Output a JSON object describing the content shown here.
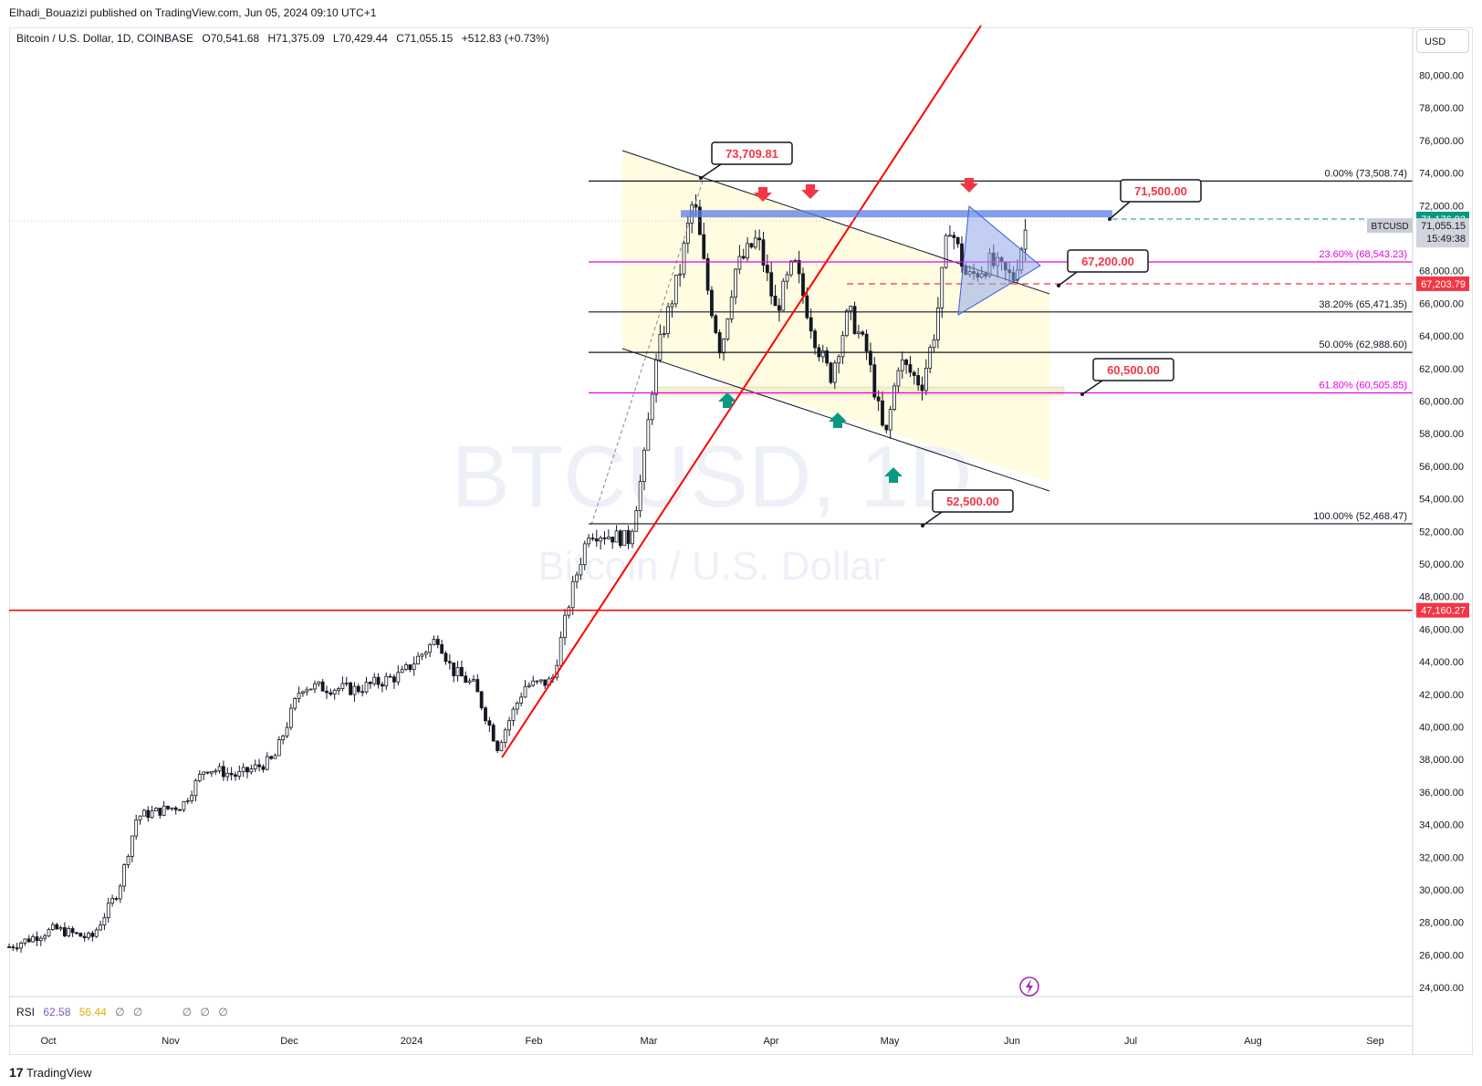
{
  "header": {
    "published": "Elhadi_Bouazizi published on TradingView.com, Jun 05, 2024 09:10 UTC+1"
  },
  "legend": {
    "symbol": "Bitcoin / U.S. Dollar, 1D, COINBASE",
    "open": "O70,541.68",
    "high": "H71,375.09",
    "low": "L70,429.44",
    "close": "C71,055.15",
    "change": "+512.83 (+0.73%)"
  },
  "currency": "USD",
  "watermark": {
    "line1": "BTCUSD, 1D",
    "line2": "Bitcoin / U.S. Dollar"
  },
  "rsi": {
    "label": "RSI",
    "value1": "62.58",
    "value2": "56.44",
    "icons": [
      "∅",
      "∅",
      "∅",
      "∅",
      "∅"
    ]
  },
  "brand": {
    "logo_text": "17",
    "name": "TradingView"
  },
  "colors": {
    "up": "#089981",
    "down": "#f23645",
    "candle": "#131722",
    "trendline": "#ff0000",
    "magenta": "#e600e6",
    "channel_fill": "#fffbdc",
    "blue_zone": "#5b7ee5"
  },
  "chart_data": {
    "type": "candlestick",
    "symbol": "BTCUSD",
    "y_axis": {
      "range": [
        23000,
        82000
      ],
      "ticks": [
        "80,000.00",
        "78,000.00",
        "76,000.00",
        "74,000.00",
        "72,000.00",
        "70,000.00",
        "68,000.00",
        "66,000.00",
        "64,000.00",
        "62,000.00",
        "60,000.00",
        "58,000.00",
        "56,000.00",
        "54,000.00",
        "52,000.00",
        "50,000.00",
        "48,000.00",
        "46,000.00",
        "44,000.00",
        "42,000.00",
        "40,000.00",
        "38,000.00",
        "36,000.00",
        "34,000.00",
        "32,000.00",
        "30,000.00",
        "28,000.00",
        "26,000.00",
        "24,000.00"
      ]
    },
    "x_axis": {
      "labels": [
        "Oct",
        "Nov",
        "Dec",
        "2024",
        "Feb",
        "Mar",
        "Apr",
        "May",
        "Jun",
        "Jul",
        "Aug",
        "Sep"
      ]
    },
    "price_markers": [
      {
        "label": "71,176.92",
        "value": 71176.92,
        "color": "#089981"
      },
      {
        "label": "71,055.15",
        "value": 71055.15,
        "color": "#e0e3eb",
        "symbol": "BTCUSD",
        "countdown": "15:49:38"
      },
      {
        "label": "67,203.79",
        "value": 67203.79,
        "color": "#f23645"
      },
      {
        "label": "47,160.27",
        "value": 47160.27,
        "color": "#f23645"
      }
    ],
    "fib_levels": [
      {
        "label": "0.00% (73,508.74)",
        "value": 73508.74,
        "color": "#131722"
      },
      {
        "label": "23.60% (68,543.23)",
        "value": 68543.23,
        "color": "#e600e6"
      },
      {
        "label": "38.20% (65,471.35)",
        "value": 65471.35,
        "color": "#131722"
      },
      {
        "label": "50.00% (62,988.60)",
        "value": 62988.6,
        "color": "#131722"
      },
      {
        "label": "61.80% (60,505.85)",
        "value": 60505.85,
        "color": "#e600e6"
      },
      {
        "label": "100.00% (52,468.47)",
        "value": 52468.47,
        "color": "#131722"
      }
    ],
    "callouts": [
      {
        "label": "73,709.81",
        "value": 73709.81
      },
      {
        "label": "71,500.00",
        "value": 71500
      },
      {
        "label": "67,200.00",
        "value": 67200
      },
      {
        "label": "60,500.00",
        "value": 60500
      },
      {
        "label": "52,500.00",
        "value": 52500
      }
    ],
    "horizontal_line": {
      "value": 47160.27
    }
  }
}
